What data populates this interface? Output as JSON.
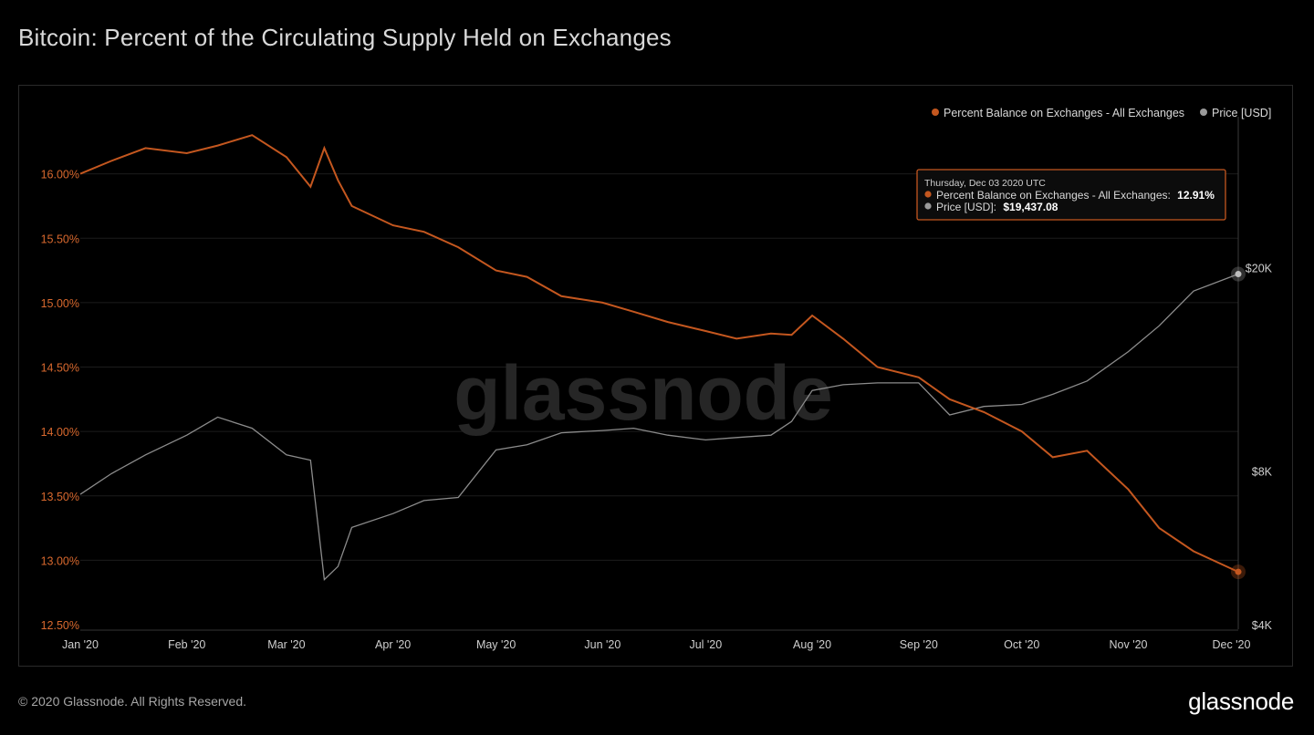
{
  "title": "Bitcoin: Percent of the Circulating Supply Held on Exchanges",
  "watermark": "glassnode",
  "footer": {
    "copyright": "© 2020 Glassnode. All Rights Reserved.",
    "logo": "glassnode"
  },
  "colors": {
    "background": "#000000",
    "percent_series": "#c4571f",
    "percent_axis": "#d9692e",
    "price_series": "#8c8c8c",
    "gridline": "#1c1c1c",
    "tooltip_border": "#c4571f"
  },
  "tooltip": {
    "date": "Thursday, Dec 03 2020 UTC",
    "series1_label": "Percent Balance on Exchanges - All Exchanges:",
    "series1_value": "12.91%",
    "series2_label": "Price [USD]:",
    "series2_value": "$19,437.08"
  },
  "chart_data": {
    "type": "line",
    "title": "Bitcoin: Percent of the Circulating Supply Held on Exchanges",
    "legend_position": "top-right",
    "grid": true,
    "x_axis": {
      "range": [
        "2020-01-01",
        "2020-12-03"
      ],
      "tick_labels": [
        "Jan '20",
        "Feb '20",
        "Mar '20",
        "Apr '20",
        "May '20",
        "Jun '20",
        "Jul '20",
        "Aug '20",
        "Sep '20",
        "Oct '20",
        "Nov '20",
        "Dec '20"
      ],
      "tick_dates": [
        "2020-01-01",
        "2020-02-01",
        "2020-03-01",
        "2020-04-01",
        "2020-05-01",
        "2020-06-01",
        "2020-07-01",
        "2020-08-01",
        "2020-09-01",
        "2020-10-01",
        "2020-11-01",
        "2020-12-01"
      ]
    },
    "y_axis_left": {
      "range": [
        12.5,
        16.5
      ],
      "tick_values": [
        12.5,
        13.0,
        13.5,
        14.0,
        14.5,
        15.0,
        15.5,
        16.0
      ],
      "tick_labels": [
        "12.50%",
        "13.00%",
        "13.50%",
        "14.00%",
        "14.50%",
        "15.00%",
        "15.50%",
        "16.00%"
      ]
    },
    "y_axis_right": {
      "scale": "log",
      "range": [
        4000,
        30000
      ],
      "tick_values": [
        4000,
        8000,
        20000
      ],
      "tick_labels": [
        "$4K",
        "$8K",
        "$20K"
      ]
    },
    "series": [
      {
        "name": "Percent Balance on Exchanges - All Exchanges",
        "axis": "left",
        "color": "#c4571f",
        "x": [
          "2020-01-01",
          "2020-01-10",
          "2020-01-20",
          "2020-02-01",
          "2020-02-10",
          "2020-02-20",
          "2020-03-01",
          "2020-03-08",
          "2020-03-12",
          "2020-03-16",
          "2020-03-20",
          "2020-04-01",
          "2020-04-10",
          "2020-04-20",
          "2020-05-01",
          "2020-05-10",
          "2020-05-20",
          "2020-06-01",
          "2020-06-10",
          "2020-06-20",
          "2020-07-01",
          "2020-07-10",
          "2020-07-20",
          "2020-07-26",
          "2020-08-01",
          "2020-08-10",
          "2020-08-20",
          "2020-09-01",
          "2020-09-10",
          "2020-09-20",
          "2020-10-01",
          "2020-10-10",
          "2020-10-20",
          "2020-11-01",
          "2020-11-10",
          "2020-11-20",
          "2020-12-03"
        ],
        "values": [
          16.0,
          16.1,
          16.2,
          16.16,
          16.22,
          16.3,
          16.13,
          15.9,
          16.2,
          15.95,
          15.75,
          15.6,
          15.55,
          15.43,
          15.25,
          15.2,
          15.05,
          15.0,
          14.93,
          14.85,
          14.78,
          14.72,
          14.76,
          14.75,
          14.9,
          14.72,
          14.5,
          14.42,
          14.25,
          14.15,
          14.0,
          13.8,
          13.85,
          13.55,
          13.25,
          13.07,
          12.91
        ]
      },
      {
        "name": "Price [USD]",
        "axis": "right",
        "color": "#8c8c8c",
        "x": [
          "2020-01-01",
          "2020-01-10",
          "2020-01-20",
          "2020-02-01",
          "2020-02-10",
          "2020-02-20",
          "2020-03-01",
          "2020-03-08",
          "2020-03-12",
          "2020-03-16",
          "2020-03-20",
          "2020-04-01",
          "2020-04-10",
          "2020-04-20",
          "2020-05-01",
          "2020-05-10",
          "2020-05-20",
          "2020-06-01",
          "2020-06-10",
          "2020-06-20",
          "2020-07-01",
          "2020-07-10",
          "2020-07-20",
          "2020-07-26",
          "2020-08-01",
          "2020-08-10",
          "2020-08-20",
          "2020-09-01",
          "2020-09-10",
          "2020-09-20",
          "2020-10-01",
          "2020-10-10",
          "2020-10-20",
          "2020-11-01",
          "2020-11-10",
          "2020-11-20",
          "2020-12-03"
        ],
        "values": [
          7200,
          7900,
          8600,
          9400,
          10200,
          9700,
          8600,
          8400,
          4900,
          5200,
          6200,
          6600,
          7000,
          7100,
          8800,
          9000,
          9500,
          9600,
          9700,
          9400,
          9200,
          9300,
          9400,
          10000,
          11500,
          11800,
          11900,
          11900,
          10300,
          10700,
          10800,
          11300,
          12000,
          13700,
          15400,
          18000,
          19437.08
        ]
      }
    ]
  }
}
